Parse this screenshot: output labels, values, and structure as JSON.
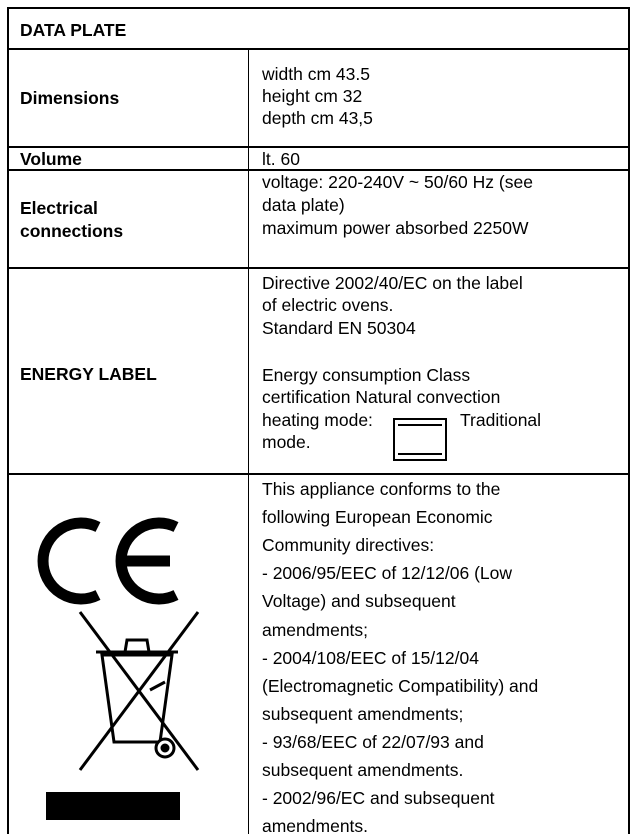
{
  "title": "DATA PLATE",
  "rows": [
    {
      "label": [
        "Dimensions"
      ],
      "lines": [
        "width cm 43.5",
        "height cm 32",
        "depth cm 43,5"
      ]
    },
    {
      "label": [
        "Volume"
      ],
      "lines": [
        "lt. 60"
      ]
    },
    {
      "label": [
        "Electrical",
        "connections"
      ],
      "lines": [
        "voltage: 220-240V ~ 50/60 Hz (see",
        "data plate)",
        "maximum power absorbed 2250W"
      ]
    },
    {
      "label": [
        "ENERGY LABEL"
      ],
      "lines": [
        "Directive 2002/40/EC on the label",
        "of electric ovens.",
        "Standard EN 50304",
        "Energy consumption Class",
        "certification Natural convection",
        "heating mode:",
        "Traditional",
        "mode."
      ]
    },
    {
      "label": [],
      "lines": [
        "This appliance conforms to the",
        "following European Economic",
        "Community directives:",
        "- 2006/95/EEC of 12/12/06 (Low",
        "Voltage) and subsequent",
        "amendments;",
        "- 2004/108/EEC of 15/12/04",
        "(Electromagnetic Compatibility) and",
        "subsequent amendments;",
        "- 93/68/EEC of 22/07/93 and",
        "subsequent amendments.",
        "- 2002/96/EC and subsequent",
        "amendments."
      ]
    }
  ]
}
